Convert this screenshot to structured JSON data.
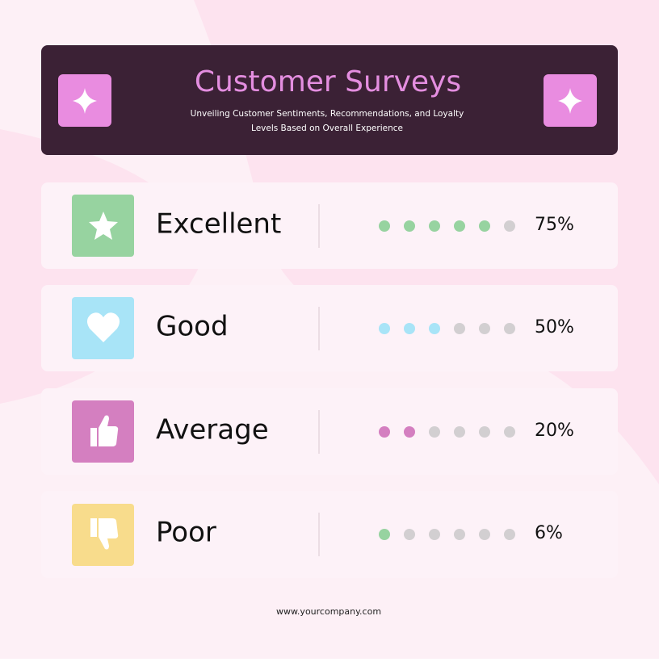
{
  "header": {
    "title": "Customer Surveys",
    "subtitle_lines": [
      "Unveiling Customer Sentiments, Recommendations, and Loyalty",
      "Levels Based on Overall Experience"
    ]
  },
  "rows": [
    {
      "label": "Excellent",
      "value": "75%"
    },
    {
      "label": "Good",
      "value": "50%"
    },
    {
      "label": "Average",
      "value": "20%"
    },
    {
      "label": "Poor",
      "value": "6%"
    }
  ],
  "footer": "www.yourcompany.com"
}
